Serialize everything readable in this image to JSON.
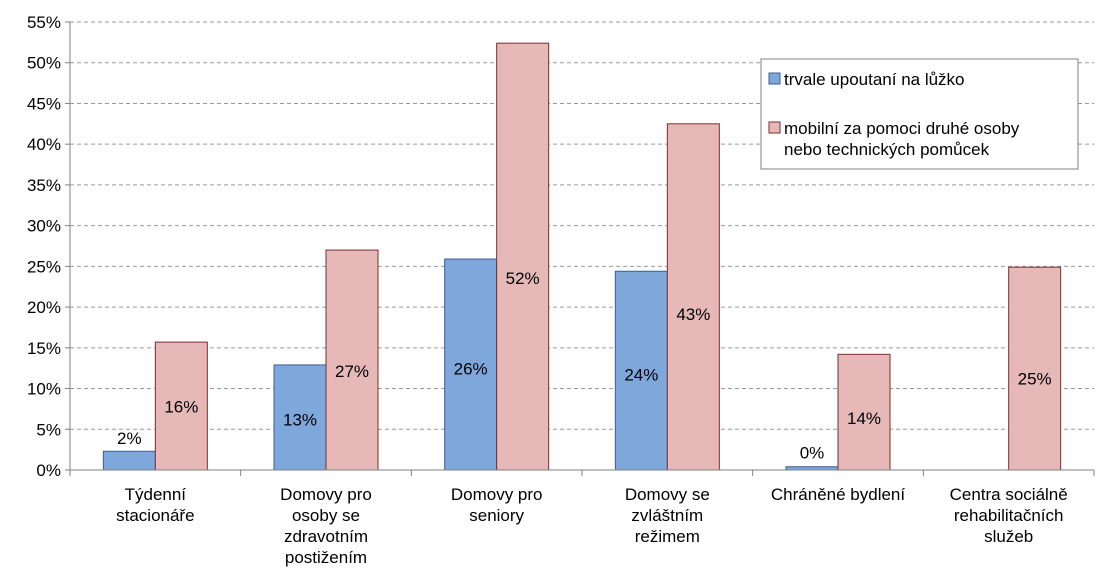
{
  "chart_data": {
    "type": "bar",
    "title": "",
    "xlabel": "",
    "ylabel": "",
    "ylim": [
      0,
      55
    ],
    "y_ticks": [
      "0%",
      "5%",
      "10%",
      "15%",
      "20%",
      "25%",
      "30%",
      "35%",
      "40%",
      "45%",
      "50%",
      "55%"
    ],
    "grid": "horizontal dashed",
    "legend_position": "top-right",
    "categories": [
      [
        "Týdenní",
        "stacionáře"
      ],
      [
        "Domovy pro",
        "osoby se",
        "zdravotním",
        "postižením"
      ],
      [
        "Domovy pro",
        "seniory"
      ],
      [
        "Domovy se",
        "zvláštním",
        "režimem"
      ],
      [
        "Chráněné bydlení"
      ],
      [
        "Centra sociálně",
        "rehabilitačních",
        "služeb"
      ]
    ],
    "series": [
      {
        "name": "trvale upoutaní na lůžko",
        "color": "#7ea7dc",
        "stroke": "#3b5f93",
        "values": [
          2.3,
          12.9,
          25.9,
          24.4,
          0.4,
          0
        ],
        "labels": [
          "2%",
          "13%",
          "26%",
          "24%",
          "0%",
          null
        ]
      },
      {
        "name": "mobilní za pomoci druhé osoby nebo technických pomůcek",
        "name_lines": [
          "mobilní za pomoci druhé osoby",
          "nebo technických pomůcek"
        ],
        "color": "#e6b9b8",
        "stroke": "#7a2e2e",
        "values": [
          15.7,
          27.0,
          52.4,
          42.5,
          14.2,
          24.9
        ],
        "labels": [
          "16%",
          "27%",
          "52%",
          "43%",
          "14%",
          "25%"
        ]
      }
    ]
  }
}
